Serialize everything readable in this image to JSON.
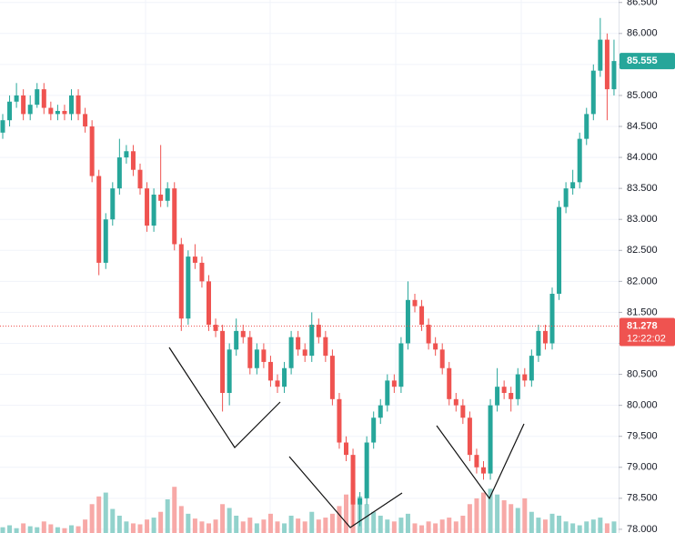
{
  "chart_data": {
    "type": "candlestick",
    "open": [
      84.4,
      84.6,
      84.9,
      85.0,
      84.7,
      84.85,
      85.1,
      84.8,
      84.7,
      84.75,
      84.7,
      85.0,
      84.7,
      84.5,
      83.7,
      82.3,
      83.0,
      83.5,
      84.0,
      84.1,
      83.8,
      83.5,
      82.9,
      83.4,
      83.3,
      83.5,
      82.6,
      81.4,
      82.4,
      82.3,
      82.0,
      81.3,
      81.2,
      80.2,
      80.9,
      81.2,
      81.1,
      80.6,
      80.9,
      80.7,
      80.4,
      80.3,
      80.6,
      81.1,
      80.9,
      80.8,
      81.3,
      81.1,
      80.8,
      80.1,
      79.4,
      79.2,
      78.4,
      78.5,
      79.4,
      79.8,
      80.0,
      80.4,
      80.3,
      81.0,
      81.7,
      81.6,
      81.3,
      81.0,
      80.9,
      80.6,
      80.1,
      80.0,
      79.8,
      79.2,
      79.0,
      78.9,
      80.0,
      80.3,
      80.2,
      80.1,
      80.5,
      80.4,
      80.8,
      81.2,
      81.0,
      81.8,
      83.2,
      83.5,
      83.6,
      84.3,
      84.7,
      85.4,
      85.9,
      85.1
    ],
    "high": [
      84.7,
      85.0,
      85.2,
      85.1,
      85.0,
      85.2,
      85.2,
      84.9,
      84.85,
      84.85,
      85.1,
      85.1,
      84.8,
      84.6,
      83.8,
      83.1,
      83.6,
      84.3,
      84.2,
      84.2,
      83.9,
      83.6,
      83.5,
      84.2,
      83.6,
      83.6,
      82.7,
      82.5,
      82.6,
      82.4,
      82.1,
      81.4,
      81.3,
      81.0,
      81.4,
      81.3,
      81.2,
      81.0,
      81.0,
      80.8,
      80.5,
      80.7,
      81.2,
      81.2,
      81.0,
      81.5,
      81.4,
      81.2,
      80.9,
      80.2,
      79.5,
      79.3,
      78.6,
      79.5,
      79.9,
      80.1,
      80.5,
      80.5,
      81.1,
      82.0,
      81.8,
      81.7,
      81.4,
      81.1,
      81.0,
      80.7,
      80.2,
      80.1,
      79.9,
      79.3,
      79.1,
      80.1,
      80.6,
      80.4,
      80.3,
      80.6,
      80.6,
      80.9,
      81.3,
      81.3,
      81.9,
      83.3,
      83.6,
      83.8,
      84.4,
      84.8,
      85.5,
      86.25,
      86.0,
      85.9
    ],
    "low": [
      84.3,
      84.5,
      84.8,
      84.6,
      84.6,
      84.8,
      84.7,
      84.6,
      84.6,
      84.6,
      84.6,
      84.6,
      84.4,
      83.6,
      82.1,
      82.2,
      82.9,
      83.4,
      83.9,
      83.7,
      83.4,
      82.8,
      82.8,
      83.2,
      83.2,
      82.5,
      81.2,
      81.3,
      82.2,
      81.9,
      81.2,
      81.1,
      79.9,
      80.0,
      80.8,
      81.0,
      80.5,
      80.5,
      80.6,
      80.3,
      80.2,
      80.2,
      80.5,
      80.8,
      80.7,
      80.7,
      81.0,
      80.7,
      80.0,
      79.3,
      79.1,
      78.05,
      78.05,
      78.4,
      79.3,
      79.7,
      79.9,
      80.2,
      80.2,
      80.9,
      81.5,
      81.2,
      80.9,
      80.8,
      80.5,
      80.0,
      79.9,
      79.7,
      79.1,
      78.9,
      78.8,
      78.8,
      79.9,
      80.1,
      79.9,
      80.0,
      80.3,
      80.3,
      80.7,
      80.9,
      80.9,
      81.7,
      83.1,
      83.4,
      83.5,
      84.2,
      84.6,
      85.3,
      84.6,
      85.0
    ],
    "close": [
      84.6,
      84.9,
      85.0,
      84.7,
      84.85,
      85.1,
      84.8,
      84.7,
      84.75,
      84.7,
      85.0,
      84.7,
      84.5,
      83.7,
      82.3,
      83.0,
      83.5,
      84.0,
      84.1,
      83.8,
      83.5,
      82.9,
      83.4,
      83.3,
      83.5,
      82.6,
      81.4,
      82.4,
      82.3,
      82.0,
      81.3,
      81.2,
      80.2,
      80.9,
      81.2,
      81.1,
      80.6,
      80.9,
      80.7,
      80.4,
      80.3,
      80.6,
      81.1,
      80.9,
      80.8,
      81.3,
      81.1,
      80.8,
      80.1,
      79.4,
      79.2,
      78.4,
      78.5,
      79.4,
      79.8,
      80.0,
      80.4,
      80.3,
      81.0,
      81.7,
      81.6,
      81.3,
      81.0,
      80.9,
      80.6,
      80.1,
      80.0,
      79.8,
      79.2,
      79.0,
      78.9,
      80.0,
      80.3,
      80.2,
      80.1,
      80.5,
      80.4,
      80.8,
      81.2,
      81.0,
      81.8,
      83.2,
      83.5,
      83.6,
      84.3,
      84.7,
      85.4,
      85.9,
      85.1,
      85.555
    ],
    "volume": [
      6,
      8,
      5,
      10,
      7,
      6,
      12,
      9,
      6,
      5,
      8,
      7,
      14,
      30,
      38,
      42,
      25,
      18,
      12,
      10,
      9,
      14,
      16,
      22,
      35,
      48,
      28,
      20,
      15,
      12,
      10,
      14,
      30,
      26,
      18,
      12,
      16,
      10,
      14,
      20,
      12,
      10,
      18,
      15,
      12,
      22,
      14,
      16,
      20,
      28,
      40,
      52,
      38,
      30,
      22,
      18,
      14,
      12,
      16,
      20,
      10,
      8,
      12,
      10,
      14,
      16,
      12,
      18,
      30,
      36,
      42,
      46,
      40,
      34,
      30,
      26,
      36,
      22,
      16,
      14,
      20,
      18,
      12,
      10,
      8,
      12,
      14,
      16,
      10,
      12
    ],
    "up_color": "#26a69a",
    "down_color": "#ef5350",
    "up_volume_color": "#92d2cc",
    "down_volume_color": "#f7a9a7",
    "ylim": [
      77.94,
      86.54
    ],
    "yticks": [
      {
        "value": 78,
        "label": "78.000"
      },
      {
        "value": 78.5,
        "label": "78.500"
      },
      {
        "value": 79,
        "label": "79.000"
      },
      {
        "value": 79.5,
        "label": "79.500"
      },
      {
        "value": 80,
        "label": "80.000"
      },
      {
        "value": 80.5,
        "label": "80.500"
      },
      {
        "value": 81,
        "label": "81.000"
      },
      {
        "value": 81.5,
        "label": "81.500"
      },
      {
        "value": 82,
        "label": "82.000"
      },
      {
        "value": 82.5,
        "label": "82.500"
      },
      {
        "value": 83,
        "label": "83.000"
      },
      {
        "value": 83.5,
        "label": "83.500"
      },
      {
        "value": 84,
        "label": "84.000"
      },
      {
        "value": 84.5,
        "label": "84.500"
      },
      {
        "value": 85,
        "label": "85.000"
      },
      {
        "value": 85.5,
        "label": "85.500"
      },
      {
        "value": 86,
        "label": "86.000"
      },
      {
        "value": 86.5,
        "label": "86.500"
      }
    ],
    "grid": true,
    "current_price": 85.555,
    "price_line": {
      "value": 81.278,
      "time": "12:22:02"
    }
  }
}
